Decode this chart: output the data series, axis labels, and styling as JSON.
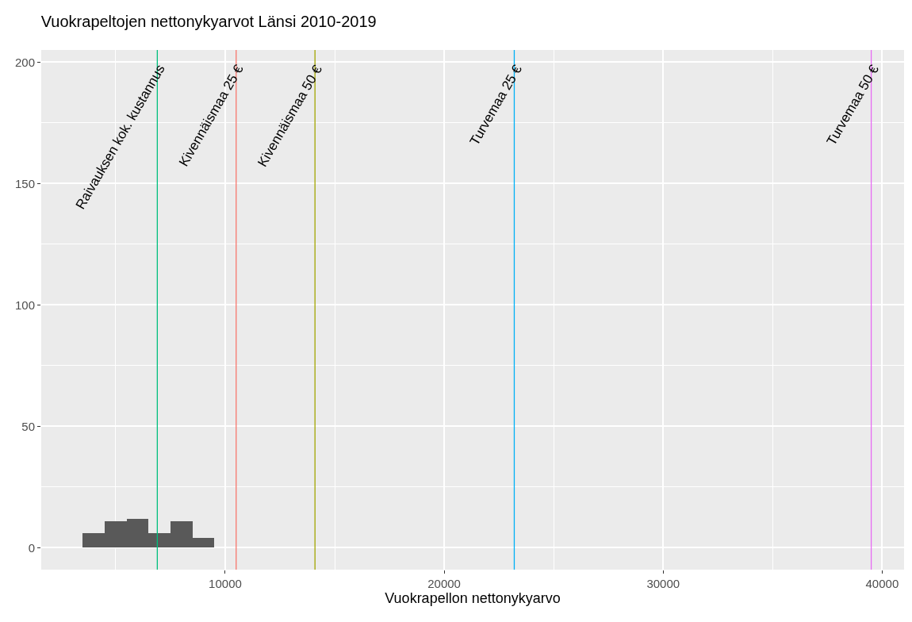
{
  "chart_data": {
    "type": "histogram",
    "title": "Vuokrapeltojen nettonykyarvot Länsi 2010-2019",
    "xlabel": "Vuokrapellon nettonykyarvo",
    "bins": [
      3500,
      4500,
      5500,
      6500,
      7500,
      8500,
      9500
    ],
    "values": [
      6,
      11,
      12,
      6,
      11,
      4
    ],
    "color": "#595959",
    "xlim": [
      1600,
      41000
    ],
    "xticks": [
      10000,
      20000,
      30000,
      40000
    ],
    "ylim": [
      -9,
      205
    ],
    "yticks": [
      0,
      50,
      100,
      150,
      200
    ],
    "grid": true,
    "ref_lines": [
      {
        "axis": "x",
        "value": 6900,
        "label": "Raivauksen kok. kustannus",
        "color": "#00BF7D"
      },
      {
        "axis": "x",
        "value": 10500,
        "label": "Kivennäismaa 25 €",
        "color": "#F8766D"
      },
      {
        "axis": "x",
        "value": 14100,
        "label": "Kivennäismaa 50 €",
        "color": "#A3A500"
      },
      {
        "axis": "x",
        "value": 23200,
        "label": "Turvemaa 25 €",
        "color": "#00B0F6"
      },
      {
        "axis": "x",
        "value": 39500,
        "label": "Turvemaa 50 €",
        "color": "#E76BF3"
      }
    ]
  }
}
